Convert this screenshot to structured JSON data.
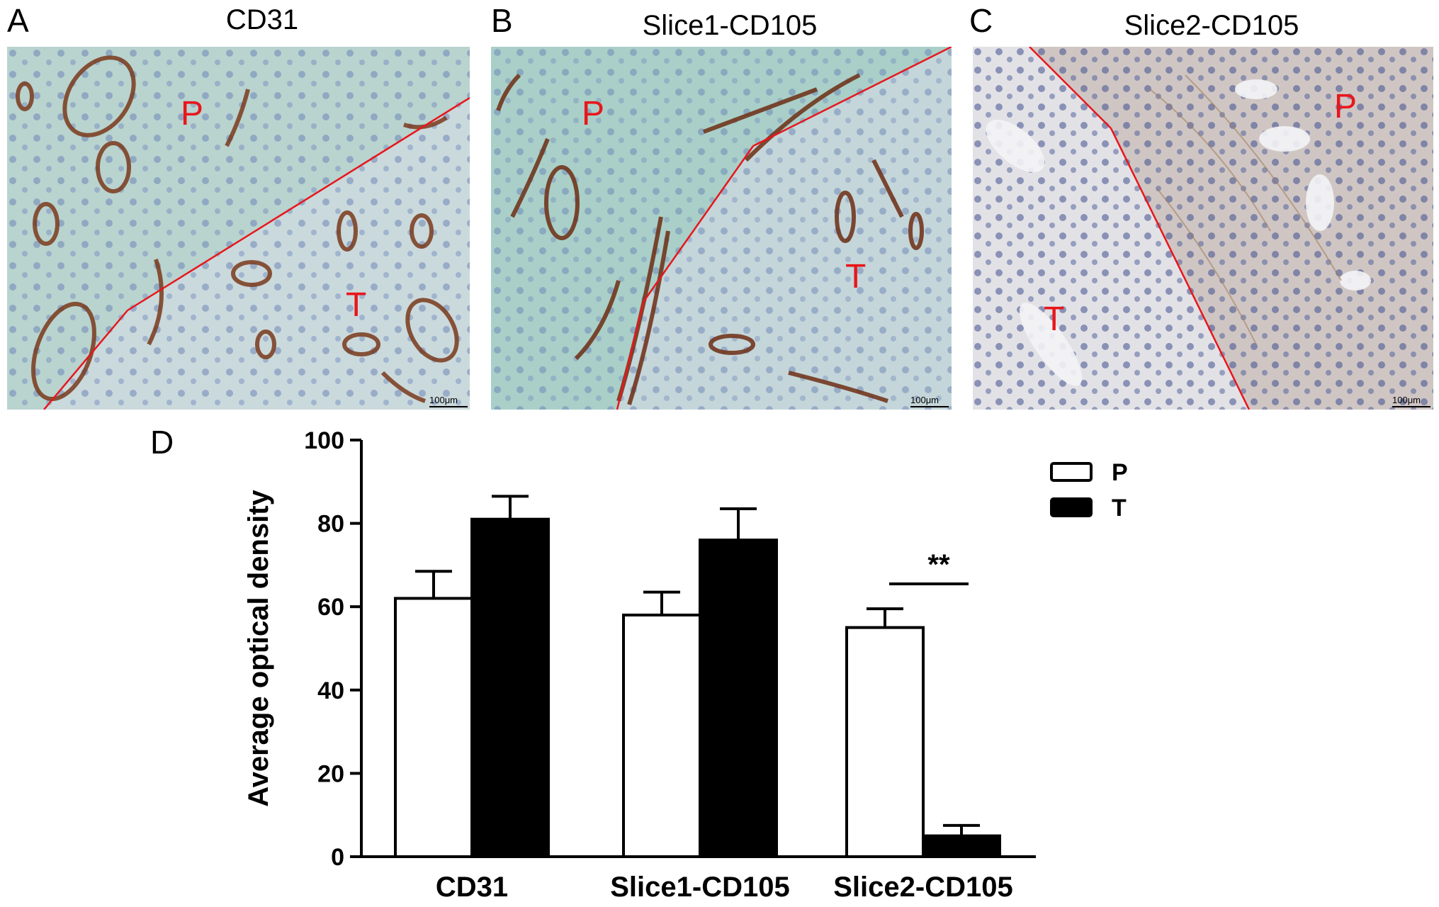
{
  "panels": [
    {
      "letter": "A",
      "title": "CD31",
      "label_p": "P",
      "label_t": "T",
      "scale_bar": "100μm"
    },
    {
      "letter": "B",
      "title": "Slice1-CD105",
      "label_p": "P",
      "label_t": "T",
      "scale_bar": "100μm"
    },
    {
      "letter": "C",
      "title": "Slice2-CD105",
      "label_p": "P",
      "label_t": "T",
      "scale_bar": "100μm"
    }
  ],
  "colors": {
    "boundary_line": "#e8161b",
    "region_label": "#e8161b",
    "stain_brown": "#7a3a1c",
    "tissue_bg_a": "#b9d3cf",
    "tissue_bg_b": "#a9cfc8",
    "tissue_bg_c": "#d6d4da"
  },
  "chart_panel_letter": "D",
  "chart_data": {
    "type": "bar",
    "categories": [
      "CD31",
      "Slice1-CD105",
      "Slice2-CD105"
    ],
    "series": [
      {
        "name": "P",
        "values": [
          62,
          58,
          55
        ],
        "errors": [
          6.5,
          5.5,
          4.5
        ],
        "fill": "#ffffff"
      },
      {
        "name": "T",
        "values": [
          81,
          76,
          5
        ],
        "errors": [
          5.5,
          7.5,
          2.5
        ],
        "fill": "#000000"
      }
    ],
    "ylabel": "Average optical density",
    "xlabel": "",
    "ylim": [
      0,
      100
    ],
    "yticks": [
      0,
      20,
      40,
      60,
      80,
      100
    ],
    "legend_position": "top-right",
    "annotations": [
      {
        "category": "Slice2-CD105",
        "text": "**"
      }
    ]
  }
}
